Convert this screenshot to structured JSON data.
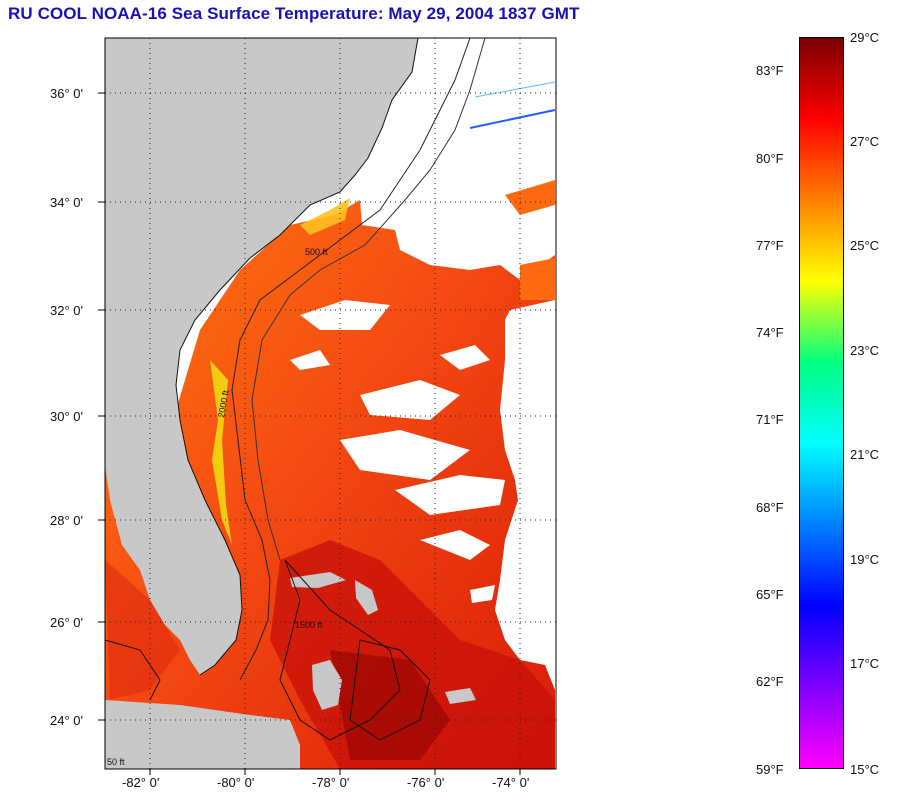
{
  "title": "RU COOL  NOAA-16  Sea Surface Temperature:  May 29, 2004 1837 GMT",
  "lat_labels": [
    "36° 0'",
    "34° 0'",
    "32° 0'",
    "30° 0'",
    "28° 0'",
    "26° 0'",
    "24° 0'"
  ],
  "lon_labels": [
    "-82° 0'",
    "-80° 0'",
    "-78° 0'",
    "-76° 0'",
    "-74° 0'"
  ],
  "colorbar": {
    "fahrenheit_labels": [
      "83°F",
      "80°F",
      "77°F",
      "74°F",
      "71°F",
      "68°F",
      "65°F",
      "62°F",
      "59°F"
    ],
    "celsius_labels": [
      "29°C",
      "27°C",
      "25°C",
      "23°C",
      "21°C",
      "19°C",
      "17°C",
      "15°C"
    ],
    "colors": [
      "#7a0000",
      "#ff0000",
      "#ff8000",
      "#ffff00",
      "#00ff80",
      "#00ffff",
      "#0080ff",
      "#0000ff",
      "#8000ff",
      "#ff00ff"
    ]
  },
  "contour_labels": [
    "50 ft",
    "500 ft",
    "1500 ft",
    "2000 ft"
  ],
  "land_color": "#c8c8c8"
}
